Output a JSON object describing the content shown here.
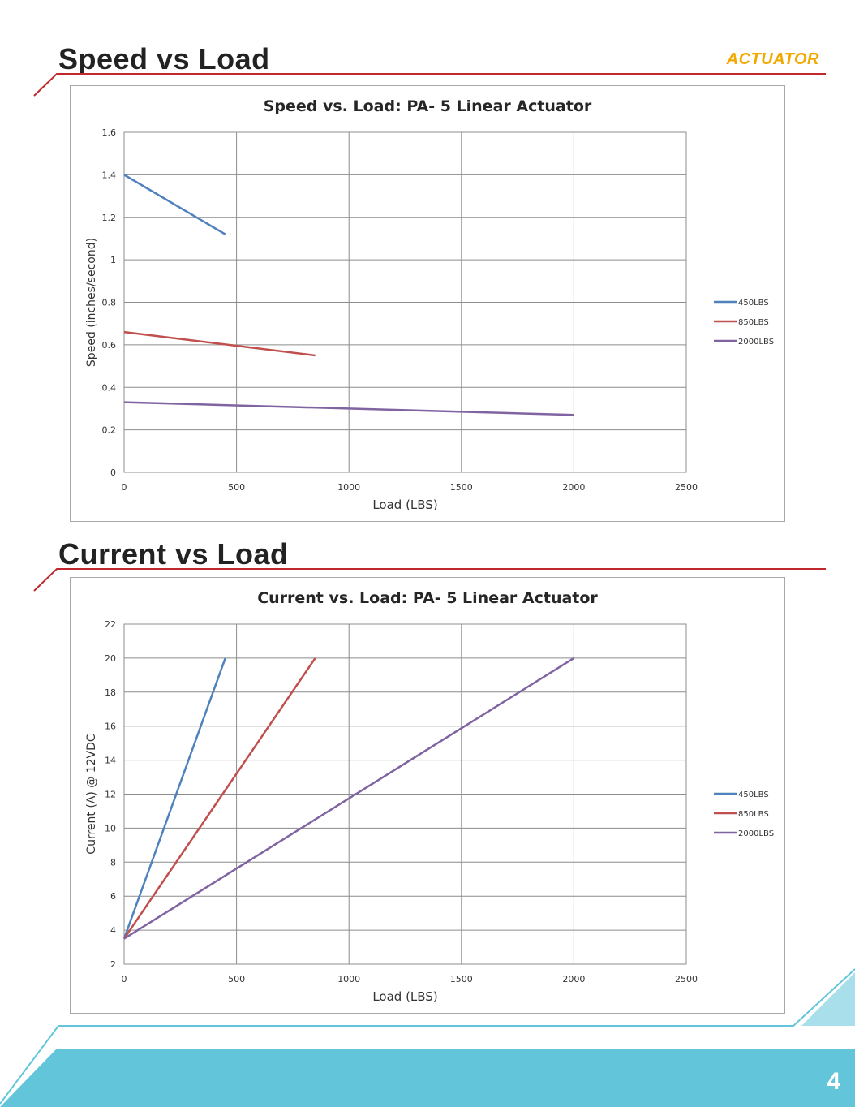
{
  "page": {
    "brand": "ACTUATOR",
    "page_number": "4",
    "accent_color": "#c0282d",
    "footer_color": "#63c5da"
  },
  "sections": [
    {
      "heading": "Speed vs Load"
    },
    {
      "heading": "Current vs Load"
    }
  ],
  "chart_data": [
    {
      "type": "line",
      "title": "Speed vs. Load: PA- 5  Linear Actuator",
      "xlabel": "Load (LBS)",
      "ylabel": "Speed (inches/second)",
      "xlim": [
        0,
        2500
      ],
      "ylim": [
        0,
        1.6
      ],
      "x_ticks": [
        0,
        500,
        1000,
        1500,
        2000,
        2500
      ],
      "y_ticks": [
        0,
        0.2,
        0.4,
        0.6,
        0.8,
        1,
        1.2,
        1.4,
        1.6
      ],
      "grid": true,
      "legend_position": "right",
      "series": [
        {
          "name": "450LBS",
          "color": "#4f81bd",
          "x": [
            0,
            450
          ],
          "y": [
            1.4,
            1.12
          ]
        },
        {
          "name": "850LBS",
          "color": "#c0504d",
          "x": [
            0,
            850
          ],
          "y": [
            0.66,
            0.55
          ]
        },
        {
          "name": "2000LBS",
          "color": "#8064a2",
          "x": [
            0,
            2000
          ],
          "y": [
            0.33,
            0.27
          ]
        }
      ]
    },
    {
      "type": "line",
      "title": "Current vs. Load: PA- 5  Linear Actuator",
      "xlabel": "Load (LBS)",
      "ylabel": "Current (A) @ 12VDC",
      "xlim": [
        0,
        2500
      ],
      "ylim": [
        2,
        22
      ],
      "x_ticks": [
        0,
        500,
        1000,
        1500,
        2000,
        2500
      ],
      "y_ticks": [
        2,
        4,
        6,
        8,
        10,
        12,
        14,
        16,
        18,
        20,
        22
      ],
      "grid": true,
      "legend_position": "right",
      "series": [
        {
          "name": "450LBS",
          "color": "#4f81bd",
          "x": [
            0,
            450
          ],
          "y": [
            3.5,
            20
          ]
        },
        {
          "name": "850LBS",
          "color": "#c0504d",
          "x": [
            0,
            850
          ],
          "y": [
            3.5,
            20
          ]
        },
        {
          "name": "2000LBS",
          "color": "#8064a2",
          "x": [
            0,
            2000
          ],
          "y": [
            3.5,
            20
          ]
        }
      ]
    }
  ]
}
